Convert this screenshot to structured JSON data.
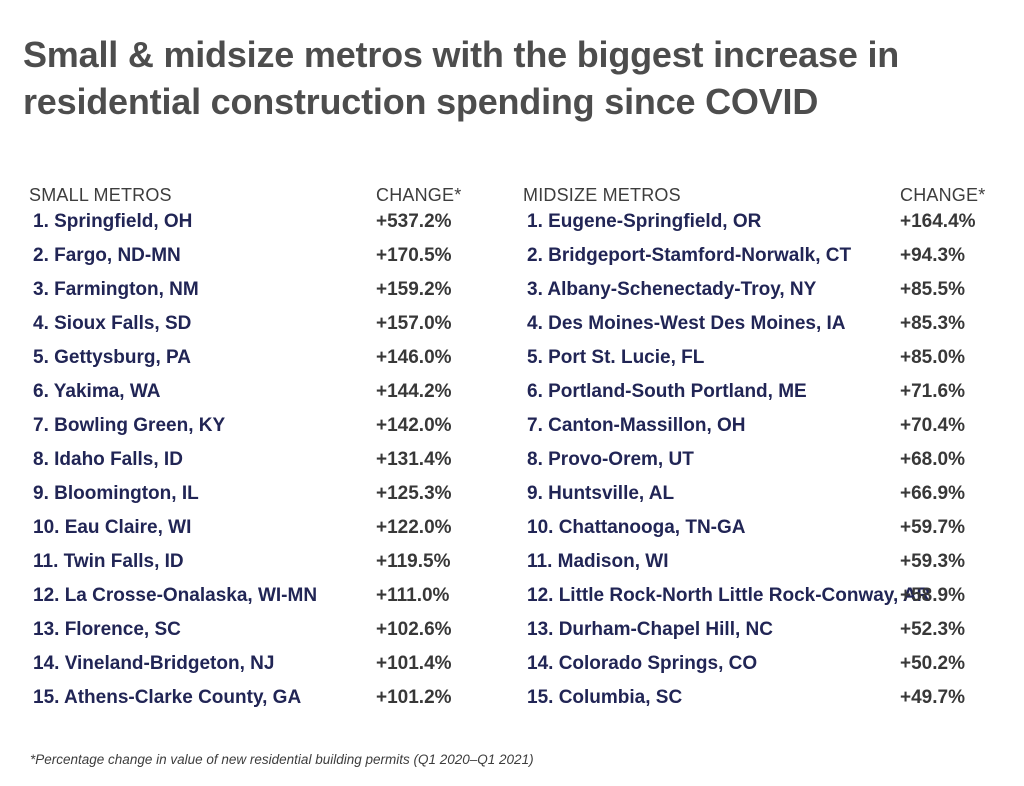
{
  "title": {
    "line1": "Small & midsize metros with the biggest increase in",
    "line2": "residential construction spending since COVID"
  },
  "footnote": "*Percentage change in value of new residential building permits (Q1 2020–Q1 2021)",
  "colors": {
    "background": "#ffffff",
    "title_text": "#4d4d4d",
    "header_text": "#3d3d3d",
    "metro_text": "#212555",
    "change_text": "#383838"
  },
  "chart_data": {
    "type": "table",
    "title": "Small & midsize metros with the biggest increase in residential construction spending since COVID",
    "footnote": "*Percentage change in value of new residential building permits (Q1 2020–Q1 2021)",
    "value_meaning": "Percentage change in value of new residential building permits, Q1 2020 to Q1 2021",
    "tables": [
      {
        "metros_header": "SMALL METROS",
        "change_header": "CHANGE*",
        "rows": [
          {
            "rank": 1,
            "metro": "Springfield, OH",
            "change": "+537.2%",
            "value": 537.2
          },
          {
            "rank": 2,
            "metro": "Fargo, ND-MN",
            "change": "+170.5%",
            "value": 170.5
          },
          {
            "rank": 3,
            "metro": "Farmington, NM",
            "change": "+159.2%",
            "value": 159.2
          },
          {
            "rank": 4,
            "metro": "Sioux Falls, SD",
            "change": "+157.0%",
            "value": 157.0
          },
          {
            "rank": 5,
            "metro": "Gettysburg, PA",
            "change": "+146.0%",
            "value": 146.0
          },
          {
            "rank": 6,
            "metro": "Yakima, WA",
            "change": "+144.2%",
            "value": 144.2
          },
          {
            "rank": 7,
            "metro": "Bowling Green, KY",
            "change": "+142.0%",
            "value": 142.0
          },
          {
            "rank": 8,
            "metro": "Idaho Falls, ID",
            "change": "+131.4%",
            "value": 131.4
          },
          {
            "rank": 9,
            "metro": "Bloomington, IL",
            "change": "+125.3%",
            "value": 125.3
          },
          {
            "rank": 10,
            "metro": "Eau Claire, WI",
            "change": "+122.0%",
            "value": 122.0
          },
          {
            "rank": 11,
            "metro": "Twin Falls, ID",
            "change": "+119.5%",
            "value": 119.5
          },
          {
            "rank": 12,
            "metro": "La Crosse-Onalaska, WI-MN",
            "change": "+111.0%",
            "value": 111.0
          },
          {
            "rank": 13,
            "metro": "Florence, SC",
            "change": "+102.6%",
            "value": 102.6
          },
          {
            "rank": 14,
            "metro": "Vineland-Bridgeton, NJ",
            "change": "+101.4%",
            "value": 101.4
          },
          {
            "rank": 15,
            "metro": "Athens-Clarke County, GA",
            "change": "+101.2%",
            "value": 101.2
          }
        ]
      },
      {
        "metros_header": "MIDSIZE METROS",
        "change_header": "CHANGE*",
        "rows": [
          {
            "rank": 1,
            "metro": "Eugene-Springfield, OR",
            "change": "+164.4%",
            "value": 164.4
          },
          {
            "rank": 2,
            "metro": "Bridgeport-Stamford-Norwalk, CT",
            "change": "+94.3%",
            "value": 94.3
          },
          {
            "rank": 3,
            "metro": "Albany-Schenectady-Troy, NY",
            "change": "+85.5%",
            "value": 85.5
          },
          {
            "rank": 4,
            "metro": "Des Moines-West Des Moines, IA",
            "change": "+85.3%",
            "value": 85.3
          },
          {
            "rank": 5,
            "metro": "Port St. Lucie, FL",
            "change": "+85.0%",
            "value": 85.0
          },
          {
            "rank": 6,
            "metro": "Portland-South Portland, ME",
            "change": "+71.6%",
            "value": 71.6
          },
          {
            "rank": 7,
            "metro": "Canton-Massillon, OH",
            "change": "+70.4%",
            "value": 70.4
          },
          {
            "rank": 8,
            "metro": "Provo-Orem, UT",
            "change": "+68.0%",
            "value": 68.0
          },
          {
            "rank": 9,
            "metro": "Huntsville, AL",
            "change": "+66.9%",
            "value": 66.9
          },
          {
            "rank": 10,
            "metro": "Chattanooga, TN-GA",
            "change": "+59.7%",
            "value": 59.7
          },
          {
            "rank": 11,
            "metro": "Madison, WI",
            "change": "+59.3%",
            "value": 59.3
          },
          {
            "rank": 12,
            "metro": "Little Rock-North Little Rock-Conway, AR",
            "change": "+58.9%",
            "value": 58.9
          },
          {
            "rank": 13,
            "metro": "Durham-Chapel Hill, NC",
            "change": "+52.3%",
            "value": 52.3
          },
          {
            "rank": 14,
            "metro": "Colorado Springs, CO",
            "change": "+50.2%",
            "value": 50.2
          },
          {
            "rank": 15,
            "metro": "Columbia, SC",
            "change": "+49.7%",
            "value": 49.7
          }
        ]
      }
    ]
  }
}
